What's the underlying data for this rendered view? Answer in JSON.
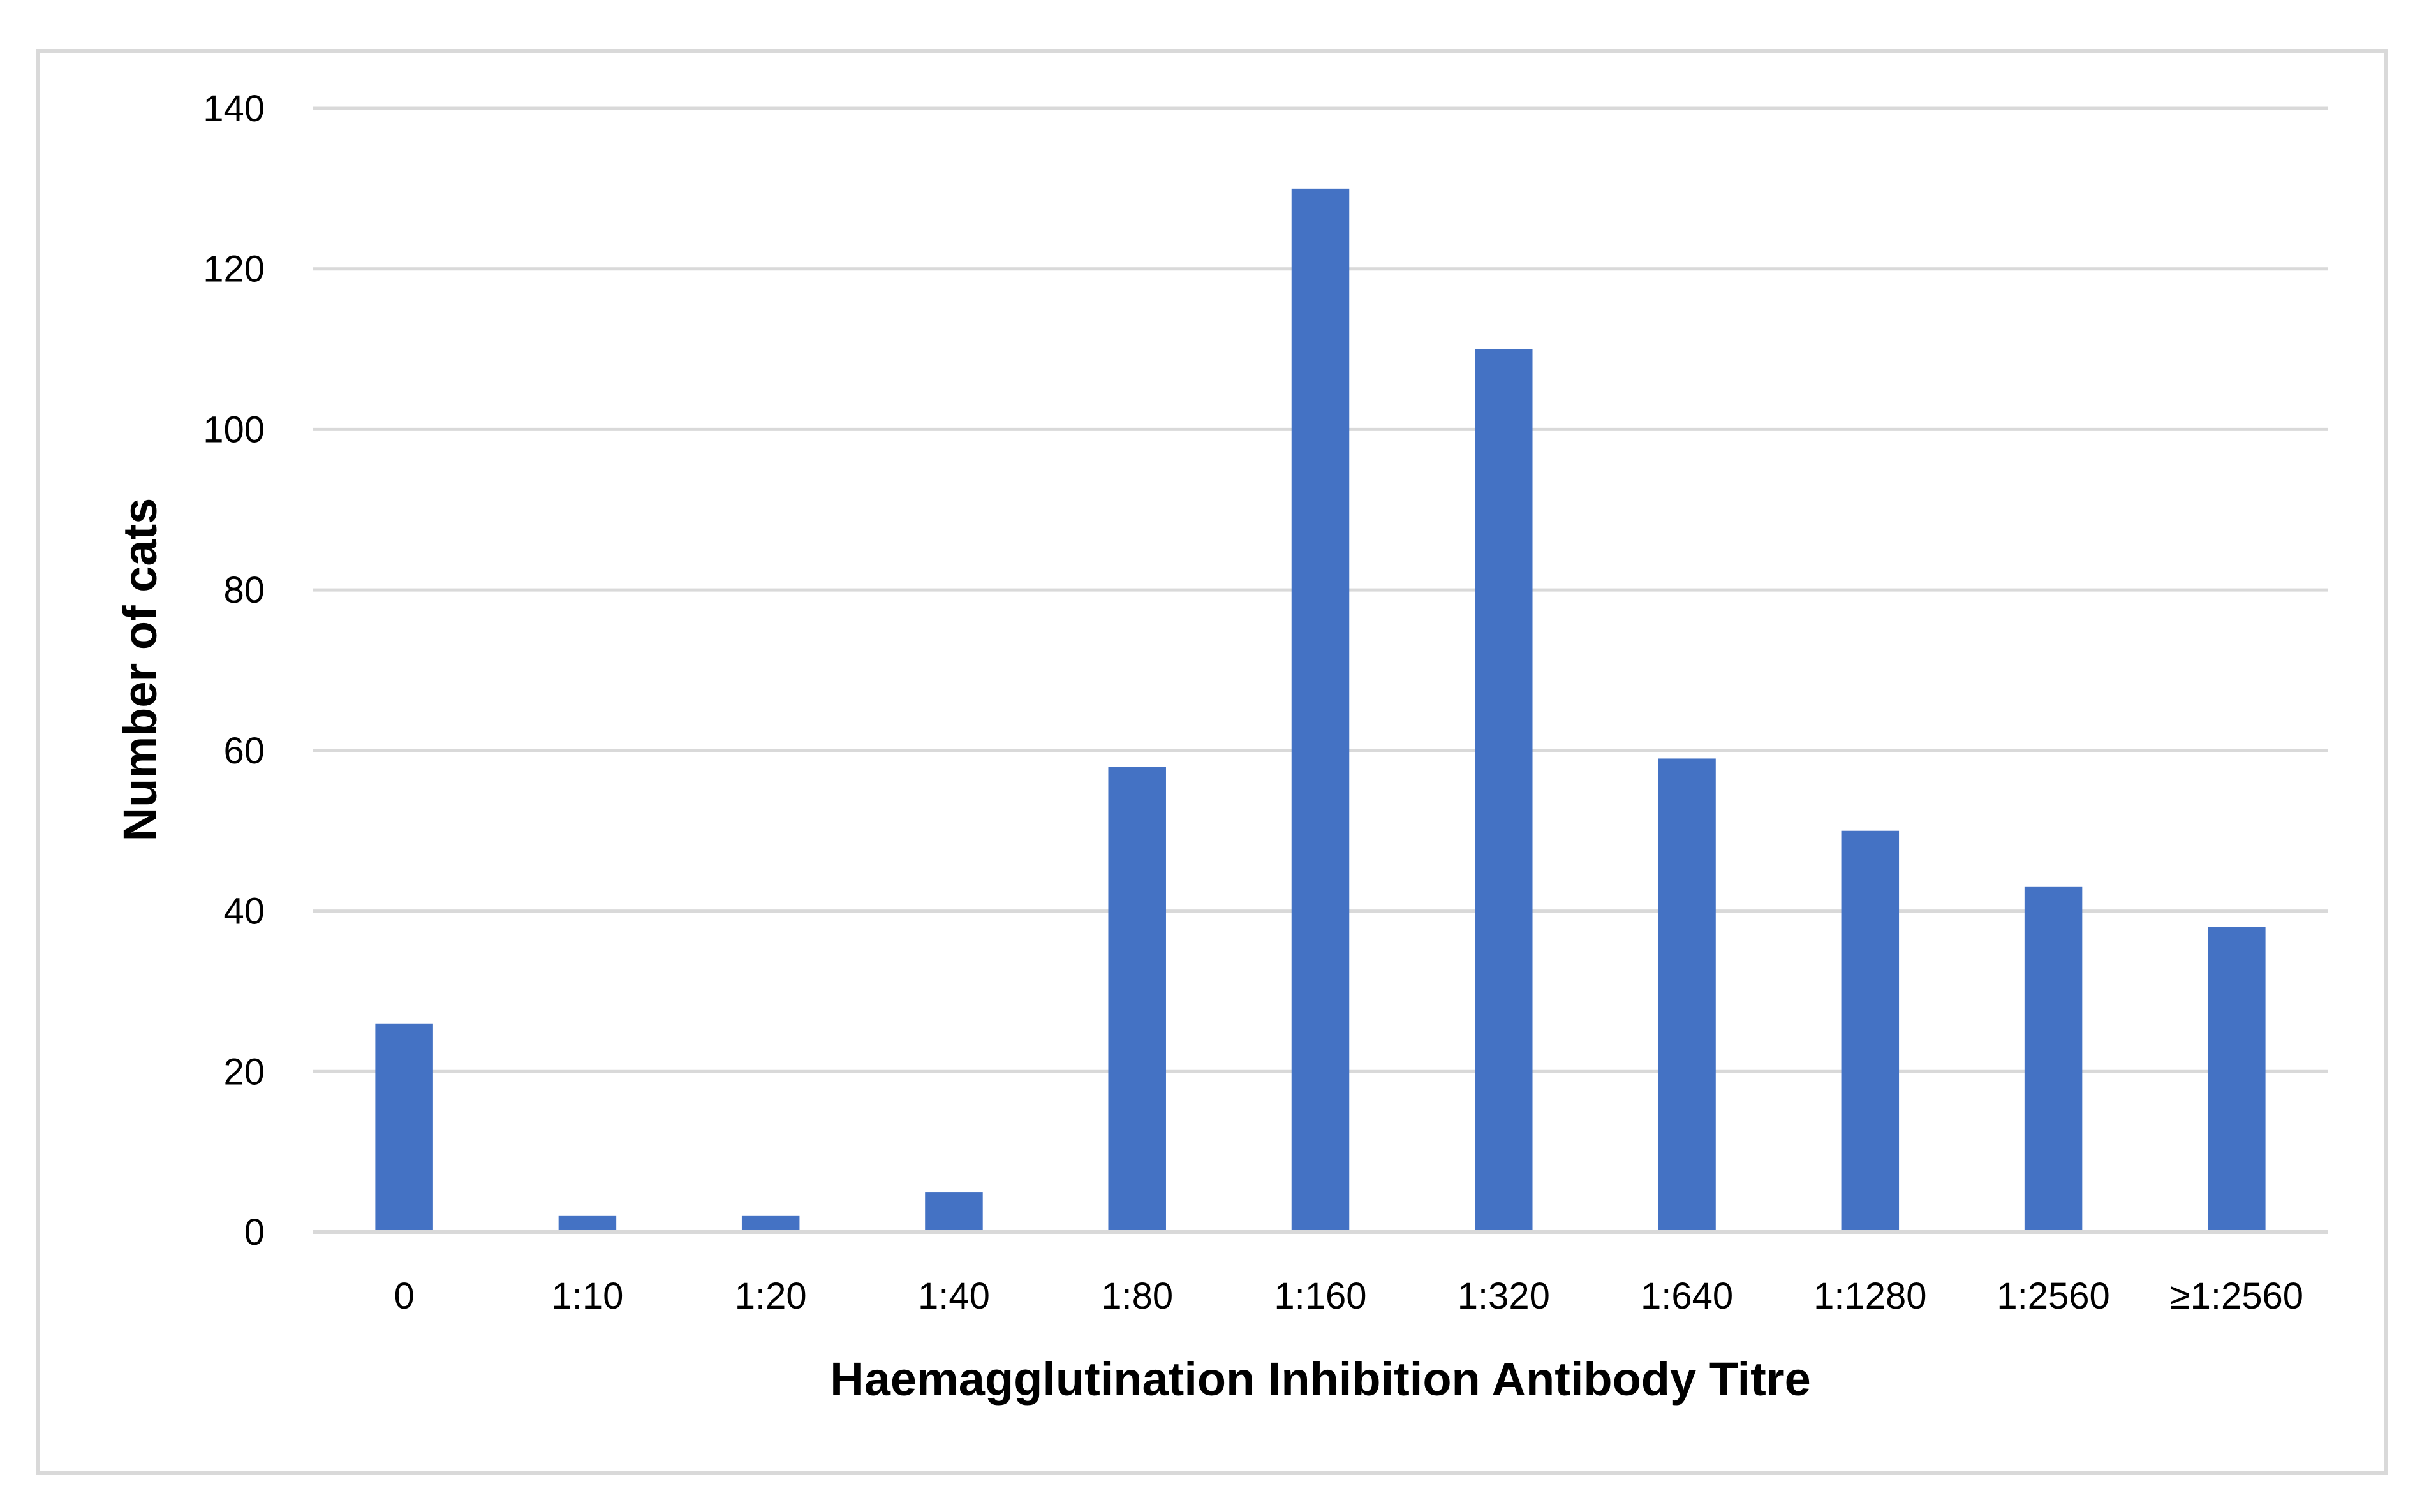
{
  "chart_data": {
    "type": "bar",
    "title": "",
    "xlabel": "Haemagglutination Inhibition Antibody Titre",
    "ylabel": "Number of cats",
    "categories": [
      "0",
      "1:10",
      "1:20",
      "1:40",
      "1:80",
      "1:160",
      "1:320",
      "1:640",
      "1:1280",
      "1:2560",
      "≥1:2560"
    ],
    "values": [
      26,
      2,
      2,
      5,
      58,
      130,
      110,
      59,
      50,
      43,
      38
    ],
    "ylim": [
      0,
      140
    ],
    "yticks": [
      0,
      20,
      40,
      60,
      80,
      100,
      120,
      140
    ],
    "grid": true,
    "legend": "none",
    "colors": {
      "bar": "#4472C4",
      "grid": "#D9D9D9",
      "border": "#D9D9D9",
      "axis": "#D9D9D9"
    }
  }
}
